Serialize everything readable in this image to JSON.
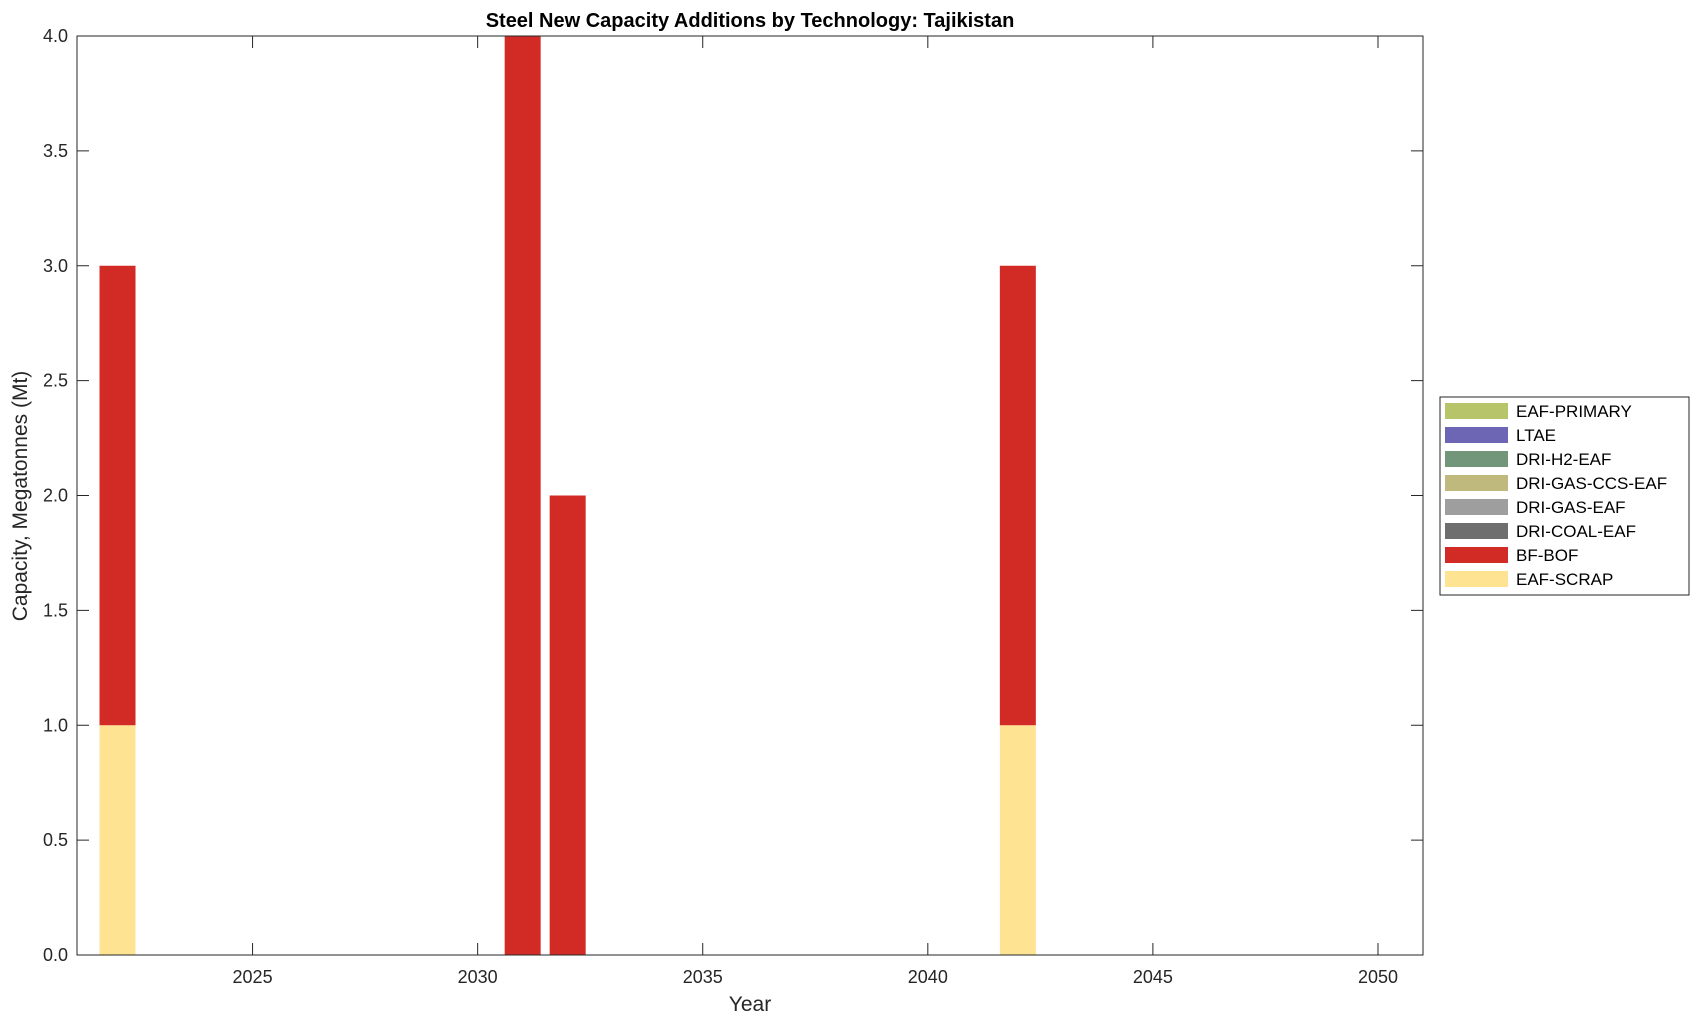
{
  "chart_data": {
    "type": "bar",
    "stacked": true,
    "title": "Steel New Capacity Additions by Technology: Tajikistan",
    "xlabel": "Year",
    "ylabel": "Capacity, Megatonnes (Mt)",
    "xlim": [
      2021.1,
      2051.0
    ],
    "ylim": [
      0,
      4
    ],
    "x_ticks": [
      2025,
      2030,
      2035,
      2040,
      2045,
      2050
    ],
    "x_tick_labels": [
      "2025",
      "2030",
      "2035",
      "2040",
      "2045",
      "2050"
    ],
    "y_ticks": [
      0,
      0.5,
      1,
      1.5,
      2,
      2.5,
      3,
      3.5,
      4
    ],
    "y_tick_labels": [
      "0.0",
      "0.5",
      "1.0",
      "1.5",
      "2.0",
      "2.5",
      "3.0",
      "3.5",
      "4.0"
    ],
    "grid": false,
    "legend_position": "right",
    "x": [
      2022,
      2031,
      2032,
      2042
    ],
    "series": [
      {
        "name": "EAF-PRIMARY",
        "color": "#b8c46a",
        "values": [
          0,
          0,
          0,
          0
        ]
      },
      {
        "name": "LTAE",
        "color": "#6c66b4",
        "values": [
          0,
          0,
          0,
          0
        ]
      },
      {
        "name": "DRI-H2-EAF",
        "color": "#72967a",
        "values": [
          0,
          0,
          0,
          0
        ]
      },
      {
        "name": "DRI-GAS-CCS-EAF",
        "color": "#c0b97e",
        "values": [
          0,
          0,
          0,
          0
        ]
      },
      {
        "name": "DRI-GAS-EAF",
        "color": "#9e9e9e",
        "values": [
          0,
          0,
          0,
          0
        ]
      },
      {
        "name": "DRI-COAL-EAF",
        "color": "#6e6e6e",
        "values": [
          0,
          0,
          0,
          0
        ]
      },
      {
        "name": "BF-BOF",
        "color": "#d22b26",
        "values": [
          2,
          4,
          2,
          2
        ]
      },
      {
        "name": "EAF-SCRAP",
        "color": "#fee393",
        "values": [
          1,
          0,
          0,
          1
        ]
      }
    ]
  }
}
